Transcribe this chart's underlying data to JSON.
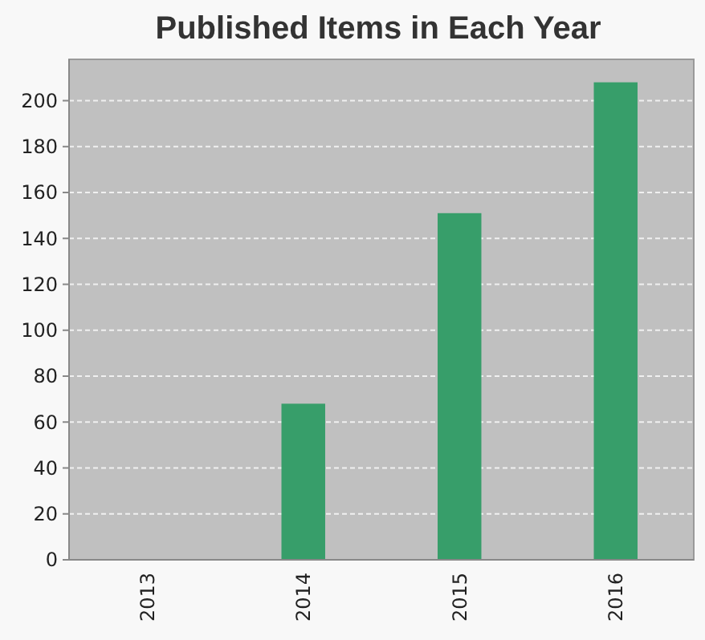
{
  "chart_data": {
    "type": "bar",
    "title": "Published Items in Each Year",
    "categories": [
      "2013",
      "2014",
      "2015",
      "2016"
    ],
    "values": [
      0,
      68,
      151,
      208
    ],
    "color": "#379e6a",
    "ylim": [
      0,
      218
    ],
    "yticks": [
      0,
      20,
      40,
      60,
      80,
      100,
      120,
      140,
      160,
      180,
      200
    ],
    "grid": "y"
  }
}
